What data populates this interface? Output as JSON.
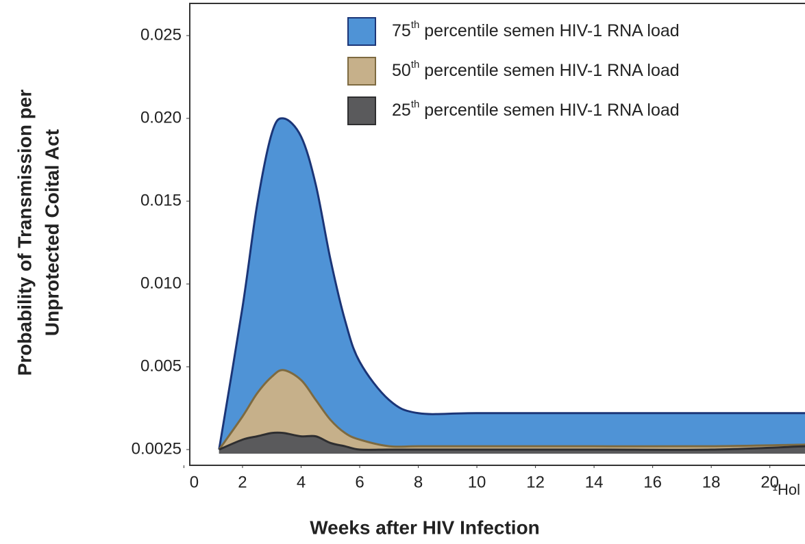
{
  "chart_data": {
    "type": "area",
    "x_label": "Weeks after HIV Infection",
    "y_label": [
      "Probability of Transmission per",
      "Unprotected Coital Act"
    ],
    "annotation": "¹Hol",
    "x": [
      1.2,
      2,
      2.5,
      3,
      3.4,
      4,
      4.5,
      5,
      5.5,
      6,
      7,
      8,
      10,
      14,
      18,
      21.2
    ],
    "series": [
      {
        "name": "75th percentile semen HIV-1 RNA load",
        "color": "#4f93d6",
        "edge": "#1b3577",
        "values": [
          0.0025,
          0.0086,
          0.0148,
          0.0191,
          0.02,
          0.0189,
          0.016,
          0.0115,
          0.0078,
          0.0053,
          0.004,
          0.0036,
          0.0036,
          0.0036,
          0.0036,
          0.0036
        ]
      },
      {
        "name": "50th percentile semen HIV-1 RNA load",
        "color": "#c6b08a",
        "edge": "#7d6a40",
        "values": [
          0.0025,
          0.0035,
          0.0042,
          0.0047,
          0.0049,
          0.0046,
          0.004,
          0.0034,
          0.003,
          0.0028,
          0.0026,
          0.0026,
          0.0026,
          0.0026,
          0.0026,
          0.00265
        ]
      },
      {
        "name": "25th percentile semen HIV-1 RNA load",
        "color": "#5a5a5c",
        "edge": "#2e2e30",
        "values": [
          0.0025,
          0.0028,
          0.0029,
          0.003,
          0.003,
          0.0029,
          0.0029,
          0.0027,
          0.0026,
          0.0025,
          0.0025,
          0.0025,
          0.0025,
          0.0025,
          0.0025,
          0.0026
        ]
      }
    ],
    "xlim": [
      0.2,
      21.2
    ],
    "xticks": [
      0,
      2,
      4,
      6,
      8,
      10,
      12,
      14,
      16,
      18,
      20
    ],
    "ylim": [
      0.002,
      0.027
    ],
    "yticks": [
      0.0025,
      0.005,
      0.01,
      0.015,
      0.02,
      0.025
    ],
    "ytick_labels": [
      "0.0025",
      "0.005",
      "0.010",
      "0.015",
      "0.020",
      "0.025"
    ],
    "y_scale": "piecewise-by-tick",
    "legend": "upper right"
  }
}
